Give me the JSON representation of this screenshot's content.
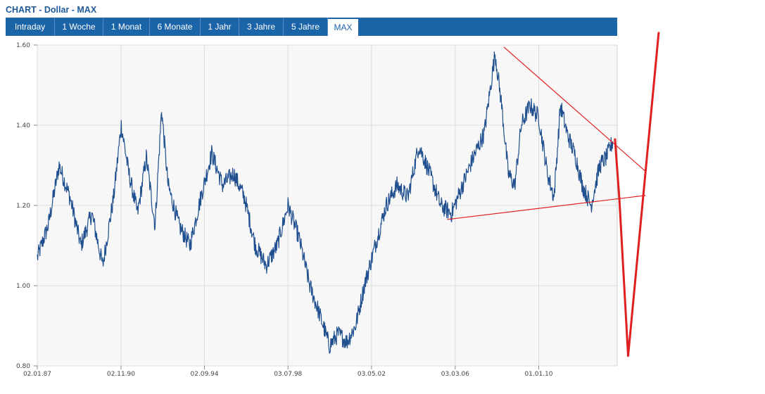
{
  "title": "CHART - Dollar - MAX",
  "tabs": [
    {
      "label": "Intraday",
      "active": false
    },
    {
      "label": "1 Woche",
      "active": false
    },
    {
      "label": "1 Monat",
      "active": false
    },
    {
      "label": "6 Monate",
      "active": false
    },
    {
      "label": "1 Jahr",
      "active": false
    },
    {
      "label": "3 Jahre",
      "active": false
    },
    {
      "label": "5 Jahre",
      "active": false
    },
    {
      "label": "MAX",
      "active": true
    }
  ],
  "colors": {
    "accent": "#1c64a8",
    "series": "#1f4f8f",
    "annotation": "#e02020"
  },
  "chart_data": {
    "type": "line",
    "title": "",
    "xlabel": "",
    "ylabel": "",
    "ylim": [
      0.8,
      1.6
    ],
    "yticks": [
      "0.80",
      "1.00",
      "1.20",
      "1.40",
      "1.60"
    ],
    "xticks": [
      "02.01.87",
      "02.11.90",
      "02.09.94",
      "03.07.98",
      "03.05.02",
      "03.03.06",
      "01.01.10"
    ],
    "grid": true,
    "series": [
      {
        "name": "",
        "x": [
          "1987.0",
          "1987.5",
          "1988.0",
          "1988.5",
          "1989.0",
          "1989.5",
          "1990.0",
          "1990.5",
          "1990.85",
          "1991.2",
          "1991.6",
          "1992.0",
          "1992.4",
          "1992.7",
          "1993.0",
          "1993.5",
          "1994.0",
          "1994.5",
          "1995.0",
          "1995.5",
          "1996.0",
          "1996.5",
          "1997.0",
          "1997.5",
          "1998.0",
          "1998.5",
          "1999.0",
          "1999.5",
          "2000.0",
          "2000.4",
          "2000.8",
          "2001.2",
          "2001.6",
          "2002.0",
          "2002.5",
          "2003.0",
          "2003.5",
          "2004.0",
          "2004.5",
          "2005.0",
          "2005.5",
          "2006.0",
          "2006.5",
          "2007.0",
          "2007.5",
          "2008.0",
          "2008.3",
          "2008.6",
          "2008.9",
          "2009.2",
          "2009.6",
          "2010.0",
          "2010.4",
          "2010.7",
          "2011.0",
          "2011.3",
          "2011.7",
          "2012.0",
          "2012.4",
          "2012.8",
          "2013.1",
          "2013.4"
        ],
        "values": [
          1.07,
          1.15,
          1.3,
          1.22,
          1.1,
          1.18,
          1.05,
          1.22,
          1.4,
          1.28,
          1.18,
          1.32,
          1.15,
          1.44,
          1.25,
          1.15,
          1.1,
          1.22,
          1.33,
          1.25,
          1.28,
          1.22,
          1.1,
          1.05,
          1.1,
          1.2,
          1.12,
          1.0,
          0.92,
          0.85,
          0.88,
          0.86,
          0.9,
          1.0,
          1.1,
          1.2,
          1.25,
          1.22,
          1.35,
          1.28,
          1.2,
          1.18,
          1.25,
          1.32,
          1.38,
          1.58,
          1.45,
          1.28,
          1.25,
          1.4,
          1.45,
          1.42,
          1.28,
          1.22,
          1.45,
          1.38,
          1.32,
          1.25,
          1.2,
          1.3,
          1.32,
          1.36
        ]
      }
    ],
    "annotations": [
      {
        "type": "trendline",
        "from": [
          "2005.8",
          1.165
        ],
        "to": [
          "2014.9",
          1.225
        ]
      },
      {
        "type": "trendline",
        "from": [
          "2008.4",
          1.595
        ],
        "to": [
          "2014.9",
          1.285
        ]
      },
      {
        "type": "freehand-check",
        "points": [
          [
            "2013.5",
            1.365
          ],
          [
            "2013.7",
            1.215
          ],
          [
            "2014.1",
            0.825
          ],
          [
            "2015.5",
            1.63
          ]
        ]
      }
    ]
  }
}
